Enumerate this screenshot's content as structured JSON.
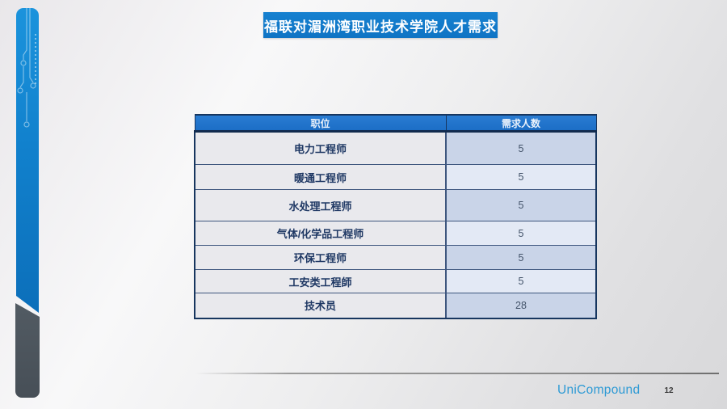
{
  "slide": {
    "title": "福联对湄洲湾职业技术学院人才需求",
    "footer_brand": "UniCompound",
    "page_number": "12"
  },
  "table": {
    "headers": [
      "职位",
      "需求人数"
    ],
    "rows": [
      {
        "position": "电力工程师",
        "count": "5"
      },
      {
        "position": "暖通工程师",
        "count": "5"
      },
      {
        "position": "水处理工程师",
        "count": "5"
      },
      {
        "position": "气体/化学品工程师",
        "count": "5"
      },
      {
        "position": "环保工程师",
        "count": "5"
      },
      {
        "position": "工安类工程師",
        "count": "5"
      },
      {
        "position": "技术员",
        "count": "28"
      }
    ]
  },
  "colors": {
    "banner_blue": "#1177c8",
    "header_blue": "#2273cd",
    "border_navy": "#17365f",
    "cell_gray": "#e9e9ed",
    "cell_blue_dark": "#c9d4e8",
    "cell_blue_light": "#e3e9f5",
    "cell_text_navy": "#1f3864",
    "sidebar_blue": "#1181cd",
    "sidebar_gray": "#4e575f",
    "brand_blue": "#2d9ad5"
  }
}
